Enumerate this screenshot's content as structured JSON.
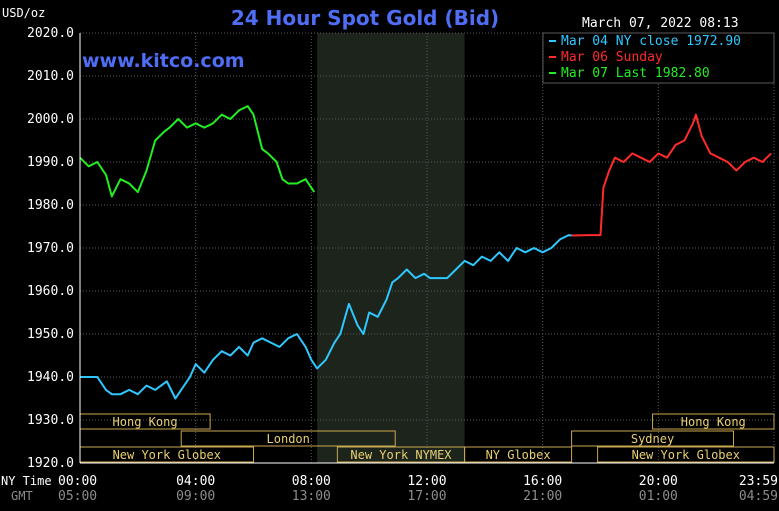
{
  "colors": {
    "background": "#000000",
    "grid": "#5a5a5a",
    "title": "#4f6df5",
    "watermark": "#4f6df5",
    "axis_text": "#ffffff",
    "gmt_text": "#8c8c8c",
    "shade": "#1c241c",
    "session_border": "#c8a850",
    "session_text": "#e8d070",
    "series_colors": [
      "#2ec8ff",
      "#ff2a2a",
      "#22ee22"
    ]
  },
  "header": {
    "unit": "USD/oz",
    "title": "24 Hour Spot Gold (Bid)",
    "timestamp": "March 07, 2022 08:13",
    "watermark": "www.kitco.com"
  },
  "axis": {
    "ny_label": "NY Time",
    "gmt_label": "GMT",
    "x_ticks": [
      "00:00",
      "04:00",
      "08:00",
      "12:00",
      "16:00",
      "20:00",
      "23:59"
    ],
    "gmt_ticks": [
      "05:00",
      "09:00",
      "13:00",
      "17:00",
      "21:00",
      "01:00",
      "04:59"
    ],
    "y_ticks": [
      "2020.0",
      "2010.0",
      "2000.0",
      "1990.0",
      "1980.0",
      "1970.0",
      "1960.0",
      "1950.0",
      "1940.0",
      "1930.0",
      "1920.0"
    ]
  },
  "sessions": [
    {
      "label": "Hong Kong",
      "start": 0.0,
      "end": 4.5,
      "row": 0
    },
    {
      "label": "London",
      "start": 3.5,
      "end": 10.9,
      "row": 1
    },
    {
      "label": "New York Globex",
      "start": 0.0,
      "end": 6.0,
      "row": 2
    },
    {
      "label": "New York NYMEX",
      "start": 8.9,
      "end": 13.3,
      "row": 2
    },
    {
      "label": "NY Globex",
      "start": 13.3,
      "end": 17.0,
      "row": 2
    },
    {
      "label": "Hong Kong",
      "start": 19.8,
      "end": 24.0,
      "row": 0
    },
    {
      "label": "Sydney",
      "start": 17.0,
      "end": 22.6,
      "row": 1
    },
    {
      "label": "New York Globex",
      "start": 17.9,
      "end": 24.0,
      "row": 2
    }
  ],
  "chart_data": {
    "type": "line",
    "title": "24 Hour Spot Gold (Bid)",
    "ylabel": "USD/oz",
    "xlabel": "NY Time",
    "xlim": [
      0,
      24
    ],
    "ylim": [
      1920,
      2020
    ],
    "shaded_region": [
      8.2,
      13.3
    ],
    "grid": true,
    "legend_position": "top-right",
    "series": [
      {
        "name": "Mar 04 NY close 1972.90",
        "x": [
          0.0,
          0.3,
          0.6,
          0.9,
          1.1,
          1.4,
          1.7,
          2.0,
          2.3,
          2.6,
          3.0,
          3.3,
          3.6,
          3.8,
          4.0,
          4.3,
          4.6,
          4.9,
          5.2,
          5.5,
          5.8,
          6.0,
          6.3,
          6.6,
          6.9,
          7.2,
          7.5,
          7.8,
          8.0,
          8.2,
          8.5,
          8.8,
          9.0,
          9.3,
          9.6,
          9.8,
          10.0,
          10.3,
          10.6,
          10.8,
          11.0,
          11.3,
          11.6,
          11.9,
          12.1,
          12.4,
          12.7,
          13.0,
          13.3,
          13.6,
          13.9,
          14.2,
          14.5,
          14.8,
          15.1,
          15.4,
          15.7,
          16.0,
          16.3,
          16.6,
          16.9,
          17.0
        ],
        "y": [
          1940,
          1940,
          1940,
          1937,
          1936,
          1936,
          1937,
          1936,
          1938,
          1937,
          1939,
          1935,
          1938,
          1940,
          1943,
          1941,
          1944,
          1946,
          1945,
          1947,
          1945,
          1948,
          1949,
          1948,
          1947,
          1949,
          1950,
          1947,
          1944,
          1942,
          1944,
          1948,
          1950,
          1957,
          1952,
          1950,
          1955,
          1954,
          1958,
          1962,
          1963,
          1965,
          1963,
          1964,
          1963,
          1963,
          1963,
          1965,
          1967,
          1966,
          1968,
          1967,
          1969,
          1967,
          1970,
          1969,
          1970,
          1969,
          1970,
          1972,
          1973,
          1972.9
        ]
      },
      {
        "name": "Mar 06 Sunday",
        "x": [
          17.0,
          17.6,
          18.0,
          18.1,
          18.3,
          18.5,
          18.8,
          19.1,
          19.4,
          19.7,
          20.0,
          20.3,
          20.6,
          20.9,
          21.2,
          21.3,
          21.5,
          21.8,
          22.1,
          22.4,
          22.7,
          23.0,
          23.3,
          23.6,
          23.9
        ],
        "y": [
          1972.9,
          1973,
          1973,
          1984,
          1988,
          1991,
          1990,
          1992,
          1991,
          1990,
          1992,
          1991,
          1994,
          1995,
          1999,
          2001,
          1996,
          1992,
          1991,
          1990,
          1988,
          1990,
          1991,
          1990,
          1992
        ]
      },
      {
        "name": "Mar 07 Last 1982.80",
        "x": [
          0.0,
          0.3,
          0.6,
          0.9,
          1.1,
          1.4,
          1.7,
          2.0,
          2.3,
          2.6,
          2.9,
          3.1,
          3.4,
          3.7,
          4.0,
          4.3,
          4.6,
          4.9,
          5.2,
          5.5,
          5.8,
          6.0,
          6.3,
          6.5,
          6.8,
          7.0,
          7.2,
          7.5,
          7.8,
          8.1
        ],
        "y": [
          1991,
          1989,
          1990,
          1987,
          1982,
          1986,
          1985,
          1983,
          1988,
          1995,
          1997,
          1998,
          2000,
          1998,
          1999,
          1998,
          1999,
          2001,
          2000,
          2002,
          2003,
          2001,
          1993,
          1992,
          1990,
          1986,
          1985,
          1985,
          1986,
          1983
        ]
      }
    ]
  }
}
